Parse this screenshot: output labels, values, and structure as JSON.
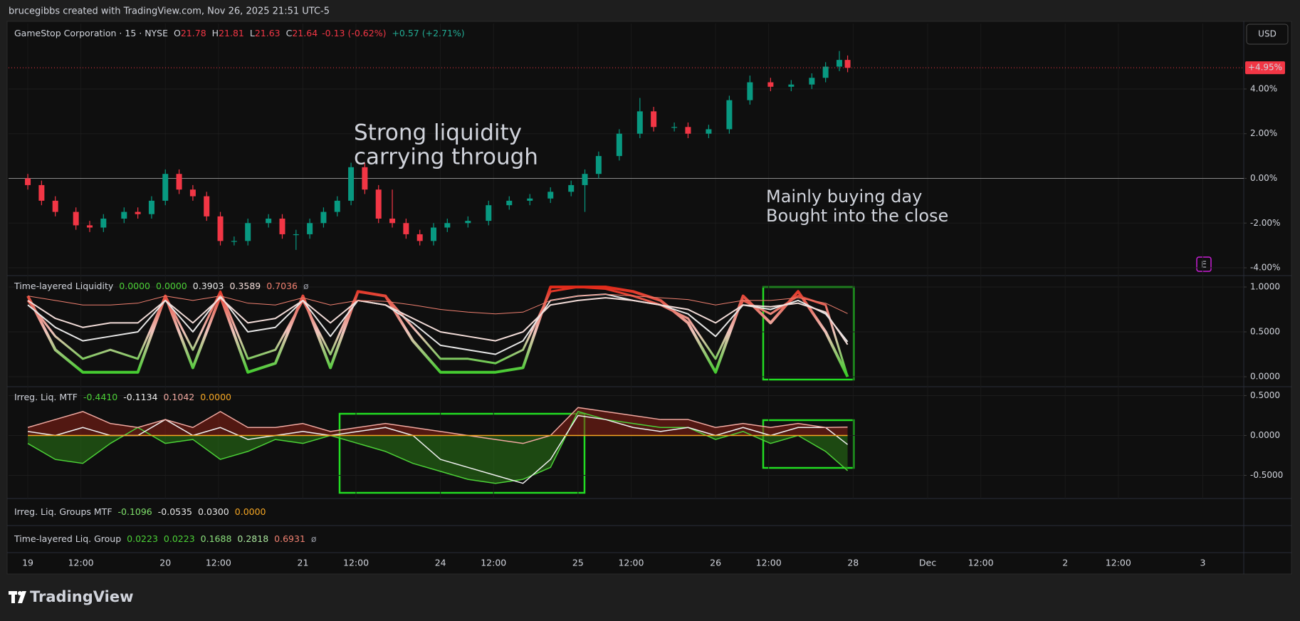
{
  "header": "brucegibbs created with TradingView.com, Nov 26, 2025 21:51 UTC-5",
  "currency": "USD",
  "earnings_marker": "E",
  "footer_logo": "TradingView",
  "chart_data": [
    {
      "type": "candlestick",
      "legend": {
        "symbol": "GameStop Corporation · 15 · NYSE",
        "ohlc": [
          [
            "O",
            "21.78"
          ],
          [
            "H",
            "21.81"
          ],
          [
            "L",
            "21.63"
          ],
          [
            "C",
            "21.64"
          ]
        ],
        "change": "-0.13 (-0.62%)",
        "ext_change": "+0.57 (+2.71%)"
      },
      "annotations": [
        [
          "Strong liquidity",
          "carrying through"
        ],
        [
          "Mainly buying day",
          "Bought into the close"
        ]
      ],
      "annotation_colors": [
        "#2fd61f",
        "#8fd18a"
      ],
      "up_color": "#089981",
      "down_color": "#f23645",
      "baseline": 0,
      "grid": true,
      "xlim": [
        -0.14,
        8.84
      ],
      "xticks": [
        {
          "value": 0,
          "label": "19"
        },
        {
          "value": 0.386,
          "label": "12:00"
        },
        {
          "value": 1,
          "label": "20"
        },
        {
          "value": 1.386,
          "label": "12:00"
        },
        {
          "value": 2,
          "label": "21"
        },
        {
          "value": 2.386,
          "label": "12:00"
        },
        {
          "value": 3,
          "label": "24"
        },
        {
          "value": 3.386,
          "label": "12:00"
        },
        {
          "value": 4,
          "label": "25"
        },
        {
          "value": 4.386,
          "label": "12:00"
        },
        {
          "value": 5,
          "label": "26"
        },
        {
          "value": 5.386,
          "label": "12:00"
        },
        {
          "value": 6,
          "label": "28"
        },
        {
          "value": 6.542,
          "label": "Dec"
        },
        {
          "value": 6.928,
          "label": "12:00"
        },
        {
          "value": 7.542,
          "label": "2"
        },
        {
          "value": 7.928,
          "label": "12:00"
        },
        {
          "value": 8.542,
          "label": "3"
        }
      ],
      "ylim": [
        -4.35,
        6.93
      ],
      "yticks": [
        {
          "value": 4,
          "label": "4.00%"
        },
        {
          "value": 2,
          "label": "2.00%"
        },
        {
          "value": 0,
          "label": "0.00%"
        },
        {
          "value": -2,
          "label": "-2.00%"
        },
        {
          "value": -4,
          "label": "-4.00%"
        }
      ],
      "last_price": {
        "value": 4.95,
        "label": "+4.95%"
      },
      "x": [
        0,
        0.1,
        0.2,
        0.35,
        0.45,
        0.55,
        0.7,
        0.8,
        0.9,
        1.0,
        1.1,
        1.2,
        1.3,
        1.4,
        1.5,
        1.6,
        1.75,
        1.85,
        1.95,
        2.05,
        2.15,
        2.25,
        2.35,
        2.45,
        2.55,
        2.65,
        2.75,
        2.85,
        2.95,
        3.05,
        3.2,
        3.35,
        3.5,
        3.65,
        3.8,
        3.95,
        4.05,
        4.15,
        4.3,
        4.45,
        4.55,
        4.7,
        4.8,
        4.95,
        5.1,
        5.25,
        5.4,
        5.55,
        5.7,
        5.8,
        5.9,
        5.96
      ],
      "open": [
        0.0,
        -0.3,
        -1.0,
        -1.5,
        -2.1,
        -2.2,
        -1.8,
        -1.5,
        -1.6,
        -1.0,
        0.2,
        -0.5,
        -0.8,
        -1.7,
        -2.8,
        -2.8,
        -2.0,
        -1.8,
        -2.5,
        -2.5,
        -2.0,
        -1.5,
        -1.0,
        0.5,
        -0.5,
        -1.8,
        -2.0,
        -2.5,
        -2.8,
        -2.2,
        -2.0,
        -1.9,
        -1.2,
        -1.0,
        -0.9,
        -0.6,
        -0.3,
        0.2,
        1.0,
        2.0,
        3.0,
        2.3,
        2.3,
        2.0,
        2.2,
        3.5,
        4.3,
        4.1,
        4.2,
        4.5,
        5.0,
        5.3
      ],
      "high": [
        0.2,
        -0.1,
        -0.8,
        -1.3,
        -1.9,
        -1.6,
        -1.3,
        -1.3,
        -0.8,
        0.4,
        0.4,
        -0.3,
        -0.6,
        -1.5,
        -2.6,
        -1.8,
        -1.6,
        -1.6,
        -2.3,
        -1.8,
        -1.3,
        -0.8,
        0.7,
        0.7,
        -0.3,
        -0.5,
        -1.8,
        -2.3,
        -2.0,
        -1.8,
        -1.7,
        -1.0,
        -0.8,
        -0.7,
        -0.4,
        -0.1,
        0.4,
        1.2,
        2.2,
        3.6,
        3.2,
        2.5,
        2.5,
        2.4,
        3.7,
        4.6,
        4.5,
        4.4,
        4.7,
        5.2,
        5.7,
        5.5
      ],
      "low": [
        -0.5,
        -1.2,
        -1.7,
        -2.3,
        -2.4,
        -2.4,
        -2.0,
        -1.8,
        -1.8,
        -1.2,
        -0.7,
        -1.0,
        -1.9,
        -3.0,
        -3.0,
        -3.0,
        -2.2,
        -2.7,
        -3.2,
        -2.7,
        -2.2,
        -1.7,
        -1.2,
        -0.7,
        -2.0,
        -2.2,
        -2.7,
        -3.0,
        -3.0,
        -2.4,
        -2.2,
        -2.1,
        -1.4,
        -1.2,
        -1.1,
        -0.8,
        -1.5,
        0.0,
        0.8,
        1.8,
        2.1,
        2.1,
        1.8,
        1.8,
        2.0,
        3.3,
        3.9,
        3.9,
        4.0,
        4.3,
        4.8,
        4.75
      ],
      "close": [
        -0.3,
        -1.0,
        -1.5,
        -2.1,
        -2.2,
        -1.8,
        -1.5,
        -1.6,
        -1.0,
        0.2,
        -0.5,
        -0.8,
        -1.7,
        -2.8,
        -2.8,
        -2.0,
        -1.8,
        -2.5,
        -2.5,
        -2.0,
        -1.5,
        -1.0,
        0.5,
        -0.5,
        -1.8,
        -2.0,
        -2.5,
        -2.8,
        -2.2,
        -2.0,
        -1.9,
        -1.2,
        -1.0,
        -0.9,
        -0.6,
        -0.3,
        0.2,
        1.0,
        2.0,
        3.0,
        2.3,
        2.3,
        2.0,
        2.2,
        3.5,
        4.3,
        4.1,
        4.2,
        4.5,
        5.0,
        5.3,
        4.95
      ]
    },
    {
      "type": "line",
      "title": "Time-layered Liquidity",
      "legend_suffix": "ø",
      "color_scale": [
        "#33cc22",
        "#f0c4bc",
        "#e02a1a"
      ],
      "grid": true,
      "xlim": [
        -0.14,
        8.84
      ],
      "ylim": [
        -0.111,
        1.127
      ],
      "yticks": [
        {
          "value": 1,
          "label": "1.0000"
        },
        {
          "value": 0.5,
          "label": "0.5000"
        },
        {
          "value": 0,
          "label": "0.0000"
        }
      ],
      "x": [
        0,
        0.2,
        0.4,
        0.6,
        0.8,
        1.0,
        1.2,
        1.4,
        1.6,
        1.8,
        2.0,
        2.2,
        2.4,
        2.6,
        2.8,
        3.0,
        3.2,
        3.4,
        3.6,
        3.8,
        4.0,
        4.2,
        4.4,
        4.6,
        4.8,
        5.0,
        5.2,
        5.4,
        5.6,
        5.8,
        5.96
      ],
      "series": [
        {
          "color": "#4cd137",
          "graded": true,
          "width": 4,
          "last_label": "0.0000",
          "values": [
            0.9,
            0.3,
            0.05,
            0.05,
            0.05,
            0.9,
            0.1,
            0.9,
            0.05,
            0.15,
            0.9,
            0.1,
            0.95,
            0.9,
            0.4,
            0.05,
            0.05,
            0.05,
            0.1,
            1.0,
            1.0,
            1.0,
            0.95,
            0.85,
            0.6,
            0.05,
            0.9,
            0.6,
            0.95,
            0.5,
            0.0
          ]
        },
        {
          "color": "#4cd137",
          "graded": true,
          "width": 3,
          "last_label": "0.0000",
          "values": [
            0.85,
            0.45,
            0.2,
            0.3,
            0.2,
            0.9,
            0.3,
            0.95,
            0.2,
            0.3,
            0.85,
            0.25,
            0.95,
            0.9,
            0.55,
            0.2,
            0.2,
            0.15,
            0.3,
            0.95,
            1.0,
            0.98,
            0.9,
            0.8,
            0.65,
            0.2,
            0.85,
            0.7,
            0.9,
            0.8,
            0.0
          ]
        },
        {
          "color": "#e6e6e6",
          "width": 2,
          "last_label": "0.3903",
          "values": [
            0.8,
            0.55,
            0.4,
            0.45,
            0.5,
            0.85,
            0.5,
            0.9,
            0.5,
            0.55,
            0.85,
            0.45,
            0.85,
            0.8,
            0.6,
            0.35,
            0.3,
            0.25,
            0.4,
            0.85,
            0.9,
            0.92,
            0.85,
            0.8,
            0.7,
            0.45,
            0.8,
            0.75,
            0.85,
            0.7,
            0.3903
          ]
        },
        {
          "color": "#f2dcd8",
          "width": 2,
          "last_label": "0.3589",
          "values": [
            0.85,
            0.65,
            0.55,
            0.6,
            0.6,
            0.85,
            0.6,
            0.88,
            0.6,
            0.65,
            0.85,
            0.6,
            0.85,
            0.8,
            0.65,
            0.5,
            0.45,
            0.4,
            0.5,
            0.8,
            0.85,
            0.88,
            0.85,
            0.8,
            0.75,
            0.6,
            0.8,
            0.78,
            0.82,
            0.72,
            0.3589
          ]
        },
        {
          "color": "#f08070",
          "width": 1,
          "last_label": "0.7036",
          "values": [
            0.9,
            0.85,
            0.8,
            0.8,
            0.82,
            0.9,
            0.85,
            0.9,
            0.82,
            0.8,
            0.88,
            0.8,
            0.85,
            0.84,
            0.8,
            0.75,
            0.72,
            0.7,
            0.72,
            0.85,
            0.9,
            0.92,
            0.9,
            0.88,
            0.86,
            0.8,
            0.85,
            0.85,
            0.88,
            0.82,
            0.7036
          ]
        }
      ]
    },
    {
      "type": "line",
      "title": "Irreg. Liq. MTF",
      "grid": true,
      "xlim": [
        -0.14,
        8.84
      ],
      "ylim": [
        -0.79,
        0.611
      ],
      "yticks": [
        {
          "value": 0.5,
          "label": "0.5000"
        },
        {
          "value": 0,
          "label": "0.0000"
        },
        {
          "value": -0.5,
          "label": "-0.5000"
        }
      ],
      "x": [
        0,
        0.2,
        0.4,
        0.6,
        0.8,
        1.0,
        1.2,
        1.4,
        1.6,
        1.8,
        2.0,
        2.2,
        2.4,
        2.6,
        2.8,
        3.0,
        3.2,
        3.4,
        3.6,
        3.8,
        4.0,
        4.2,
        4.4,
        4.6,
        4.8,
        5.0,
        5.2,
        5.4,
        5.6,
        5.8,
        5.96
      ],
      "series": [
        {
          "color": "#4cd137",
          "width": 1.5,
          "fill_below": "#2a7a16",
          "last_label": "-0.4410",
          "values": [
            -0.1,
            -0.3,
            -0.35,
            -0.1,
            0.1,
            -0.1,
            -0.05,
            -0.3,
            -0.2,
            -0.05,
            -0.1,
            0.0,
            -0.1,
            -0.2,
            -0.35,
            -0.45,
            -0.55,
            -0.6,
            -0.55,
            -0.4,
            0.3,
            0.2,
            0.15,
            0.1,
            0.1,
            -0.05,
            0.05,
            -0.1,
            0.0,
            -0.2,
            -0.441
          ]
        },
        {
          "color": "#f0f0f0",
          "width": 1.5,
          "last_label": "-0.1134",
          "values": [
            0.05,
            0.0,
            0.1,
            0.0,
            0.0,
            0.2,
            0.0,
            0.1,
            -0.05,
            0.0,
            0.05,
            0.0,
            0.05,
            0.1,
            0.0,
            -0.3,
            -0.4,
            -0.5,
            -0.6,
            -0.3,
            0.25,
            0.2,
            0.1,
            0.05,
            0.1,
            0.0,
            0.1,
            0.0,
            0.1,
            0.1,
            -0.1134
          ]
        },
        {
          "color": "#f0a8a0",
          "width": 1.5,
          "fill_above": "#8a2016",
          "last_label": "0.1042",
          "values": [
            0.1,
            0.2,
            0.3,
            0.15,
            0.1,
            0.2,
            0.1,
            0.3,
            0.1,
            0.1,
            0.15,
            0.05,
            0.1,
            0.15,
            0.1,
            0.05,
            0.0,
            -0.05,
            -0.1,
            0.0,
            0.35,
            0.3,
            0.25,
            0.2,
            0.2,
            0.1,
            0.15,
            0.1,
            0.15,
            0.1,
            0.1042
          ]
        },
        {
          "color": "#f5a623",
          "width": 1.5,
          "last_label": "0.0000",
          "values": [
            0,
            0,
            0,
            0,
            0,
            0,
            0,
            0,
            0,
            0,
            0,
            0,
            0,
            0,
            0,
            0,
            0,
            0,
            0,
            0,
            0,
            0,
            0,
            0,
            0,
            0,
            0,
            0,
            0,
            0,
            0
          ]
        }
      ]
    }
  ],
  "collapsed_panes": [
    {
      "title": "Irreg. Liq. Groups MTF",
      "values": [
        "-0.1096",
        "-0.0535",
        "0.0300",
        "0.0000"
      ],
      "colors": [
        "#7ee06a",
        "#e6e6e6",
        "#e6e6e6",
        "#f5a623"
      ]
    },
    {
      "title": "Time-layered Liq. Group",
      "values": [
        "0.0223",
        "0.0223",
        "0.1688",
        "0.2818",
        "0.6931",
        "ø"
      ],
      "colors": [
        "#4cd137",
        "#4cd137",
        "#8be07c",
        "#a8e59c",
        "#f08070",
        "#9598a1"
      ]
    }
  ]
}
